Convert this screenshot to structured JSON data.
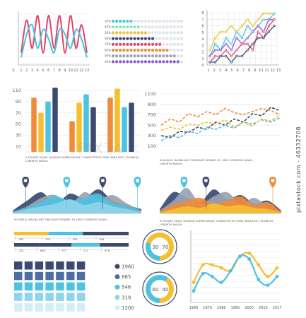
{
  "watermark": "pixtastock.com - 46332708",
  "watermark_center": "PIXTA",
  "colors": {
    "pink": "#e0436b",
    "blue": "#4cc3e0",
    "yellow": "#f5c02f",
    "orange": "#f08b3a",
    "navy": "#3b4b70",
    "gray": "#9aa3b2",
    "purple": "#8a5bd6"
  },
  "chart_data": [
    {
      "id": "wave",
      "type": "line",
      "x": [
        1,
        2,
        3,
        4,
        5,
        6,
        7,
        8,
        9,
        10,
        11,
        12,
        13
      ],
      "xticks": [
        "1",
        "2",
        "3",
        "4",
        "5",
        "6",
        "7",
        "8",
        "9",
        "10",
        "11",
        "12",
        "13"
      ],
      "yticks": [
        "0"
      ],
      "series": [
        {
          "color": "#e0436b",
          "values": [
            2,
            9,
            3,
            10,
            2,
            10,
            3,
            10,
            2,
            10,
            3,
            8,
            2
          ]
        },
        {
          "color": "#4cc3e0",
          "values": [
            1,
            6,
            8,
            3,
            7,
            5,
            2,
            7,
            6,
            3,
            7,
            5,
            1
          ]
        }
      ]
    },
    {
      "id": "dots",
      "type": "table",
      "labels": [
        "30%",
        "40%",
        "50%",
        "60%",
        "70%",
        "80%",
        "90%",
        "95%"
      ],
      "values": [
        30,
        40,
        50,
        60,
        70,
        80,
        90,
        95
      ],
      "colors": [
        "#4cc3e0",
        "#8ee0c8",
        "#f5c02f",
        "#3b4b70",
        "#e0436b",
        "#f08b3a",
        "#9aa3b2",
        "#8a5bd6"
      ]
    },
    {
      "id": "grid-lines",
      "type": "line",
      "x": [
        1,
        2,
        3,
        4,
        5,
        6,
        7,
        8,
        9,
        10,
        11,
        12,
        13
      ],
      "xticks": [
        "1",
        "2",
        "3",
        "4",
        "5",
        "6",
        "7",
        "8",
        "9",
        "10",
        "11",
        "12",
        "13"
      ],
      "yticks": [
        "8",
        "7",
        "6",
        "5",
        "4",
        "3",
        "2",
        "1",
        "0"
      ],
      "series": [
        {
          "color": "#f5c02f",
          "values": [
            2,
            4,
            5,
            5,
            6,
            5,
            6,
            7,
            6,
            7,
            8,
            8,
            8
          ]
        },
        {
          "color": "#4cc3e0",
          "values": [
            1,
            3,
            2,
            4,
            3,
            5,
            4,
            6,
            5,
            6,
            7,
            7,
            8
          ]
        },
        {
          "color": "#8a5bd6",
          "values": [
            1,
            2,
            2,
            3,
            2,
            4,
            3,
            4,
            5,
            6,
            5,
            7,
            7
          ]
        },
        {
          "color": "#e0436b",
          "values": [
            0,
            1,
            1,
            2,
            1,
            2,
            3,
            3,
            2,
            5,
            4,
            6,
            7
          ]
        },
        {
          "color": "#3b4b70",
          "values": [
            0,
            0,
            1,
            1,
            0,
            1,
            1,
            2,
            3,
            4,
            4,
            5,
            6
          ]
        }
      ]
    },
    {
      "id": "bars",
      "type": "bar",
      "yticks": [
        "10",
        "30",
        "50",
        "70",
        "90",
        "110"
      ],
      "ylim": [
        0,
        120
      ],
      "groups": [
        [
          {
            "v": 97,
            "c": "#f08b3a"
          },
          {
            "v": 70,
            "c": "#f5c02f"
          },
          {
            "v": 90,
            "c": "#4cc3e0"
          },
          {
            "v": 115,
            "c": "#3b4b70"
          }
        ],
        [
          {
            "v": 55,
            "c": "#f08b3a"
          },
          {
            "v": 88,
            "c": "#f5c02f"
          },
          {
            "v": 103,
            "c": "#4cc3e0"
          },
          {
            "v": 80,
            "c": "#3b4b70"
          }
        ],
        [
          {
            "v": 97,
            "c": "#f08b3a"
          },
          {
            "v": 113,
            "c": "#f5c02f"
          },
          {
            "v": 80,
            "c": "#4cc3e0"
          },
          {
            "v": 88,
            "c": "#3b4b70"
          }
        ]
      ],
      "caption": [
        "A FEUGIAT QUAM. QUISQUE SAPIEN NEQUE, CONSECTETUR VITAE URNA EGET, RHONCUS",
        "LOBORTIS MASSA"
      ]
    },
    {
      "id": "dashed",
      "type": "line",
      "yticks": [
        "100",
        "300",
        "500",
        "700",
        "900",
        "1100"
      ],
      "ylim": [
        0,
        1200
      ],
      "series": [
        {
          "color": "#f08b3a",
          "dash": true,
          "values": [
            500,
            620,
            560,
            720,
            660,
            760,
            700,
            820,
            740,
            700,
            760,
            820,
            780,
            700
          ]
        },
        {
          "color": "#3b4b70",
          "dash": true,
          "values": [
            300,
            260,
            380,
            360,
            460,
            420,
            560,
            500,
            620,
            560,
            720,
            680,
            840,
            780
          ]
        },
        {
          "color": "#4cc3e0",
          "dash": true,
          "values": [
            200,
            300,
            260,
            380,
            340,
            460,
            420,
            500,
            440,
            560,
            520,
            600,
            560,
            640
          ]
        },
        {
          "color": "#f5c02f",
          "dash": true,
          "values": [
            400,
            460,
            420,
            520,
            500,
            560,
            520,
            600,
            460,
            560,
            480,
            620,
            580,
            700
          ]
        }
      ],
      "caption": [
        "IN VARIUS, MAGNA NEC TINCIDUNT ORNARE, EX ODIO COMMODO QUAM,",
        "LOBORTIS MASSA"
      ]
    },
    {
      "id": "mountains-left",
      "type": "area",
      "pins": [
        {
          "x": 0.1,
          "c": "#3b4b70"
        },
        {
          "x": 0.42,
          "c": "#4cc3e0"
        },
        {
          "x": 0.7,
          "c": "#3b4b70"
        },
        {
          "x": 0.97,
          "c": "#4cc3e0"
        }
      ],
      "caption": [
        "IN VARIUS, MAGNA NEC TINCIDUNT ORNARE, EX ODIO COMMODO QUAM,"
      ]
    },
    {
      "id": "mountains-right",
      "type": "area",
      "pins": [
        {
          "x": 0.38,
          "c": "#3b4b70"
        },
        {
          "x": 0.2,
          "c": "#4cc3e0"
        },
        {
          "x": 0.93,
          "c": "#f08b3a"
        }
      ],
      "caption": [
        "A FEUGIAT QUAM. QUISQUE SAPIEN NEQUE, CONSECTETUR VITAE URNA EGET, RHONCUS",
        "LOBORTIS MASSA"
      ]
    },
    {
      "id": "progress",
      "type": "bar",
      "rows": [
        {
          "segments": [
            {
              "f": 0.3,
              "c": "#f5c02f"
            },
            {
              "f": 0.3,
              "c": "#4cc3e0"
            },
            {
              "f": 0.4,
              "c": "#3b4b70"
            }
          ],
          "labels": [
            "500",
            "812",
            "354",
            "654"
          ]
        },
        {
          "segments": [
            {
              "f": 0.22,
              "c": "#3b4b70"
            },
            {
              "f": 0.28,
              "c": "#3b4b70"
            },
            {
              "f": 0.25,
              "c": "#4cc3e0"
            },
            {
              "f": 0.25,
              "c": "#3b4b70"
            }
          ],
          "labels": [
            "222",
            "666",
            "577",
            "212",
            "876"
          ]
        }
      ]
    },
    {
      "id": "donuts",
      "type": "pie",
      "items": [
        {
          "center": "30",
          "value": "70",
          "fraction": 0.3,
          "c1": "#4cc3e0",
          "c2": "#f5c02f"
        },
        {
          "center": "60",
          "value": "40",
          "fraction": 0.6,
          "c1": "#4cc3e0",
          "c2": "#f5c02f"
        }
      ]
    },
    {
      "id": "squares",
      "type": "heatmap",
      "rows": 5,
      "cols": 7,
      "row_colors": [
        "#3b4b70",
        "#4a6fa5",
        "#4cc3e0",
        "#8ed4ea",
        "#d3eef7"
      ],
      "legend": [
        {
          "label": "1960",
          "c": "#3b4b70"
        },
        {
          "label": "865",
          "c": "#4a6fa5"
        },
        {
          "label": "546",
          "c": "#4cc3e0"
        },
        {
          "label": "319",
          "c": "#8ed4ea"
        },
        {
          "label": "1200",
          "c": "#d3eef7"
        }
      ]
    },
    {
      "id": "years",
      "type": "line",
      "xticks": [
        "1960",
        "1970",
        "1980",
        "1990",
        "2000",
        "2010",
        "2017"
      ],
      "series": [
        {
          "color": "#f5c02f",
          "values": [
            0.25,
            0.55,
            0.55,
            0.5,
            0.45,
            0.7,
            0.75,
            0.55,
            0.35,
            0.5
          ]
        },
        {
          "color": "#4cc3e0",
          "values": [
            0.1,
            0.4,
            0.35,
            0.25,
            0.45,
            0.7,
            0.65,
            0.3,
            0.2,
            0.35
          ]
        }
      ]
    }
  ]
}
